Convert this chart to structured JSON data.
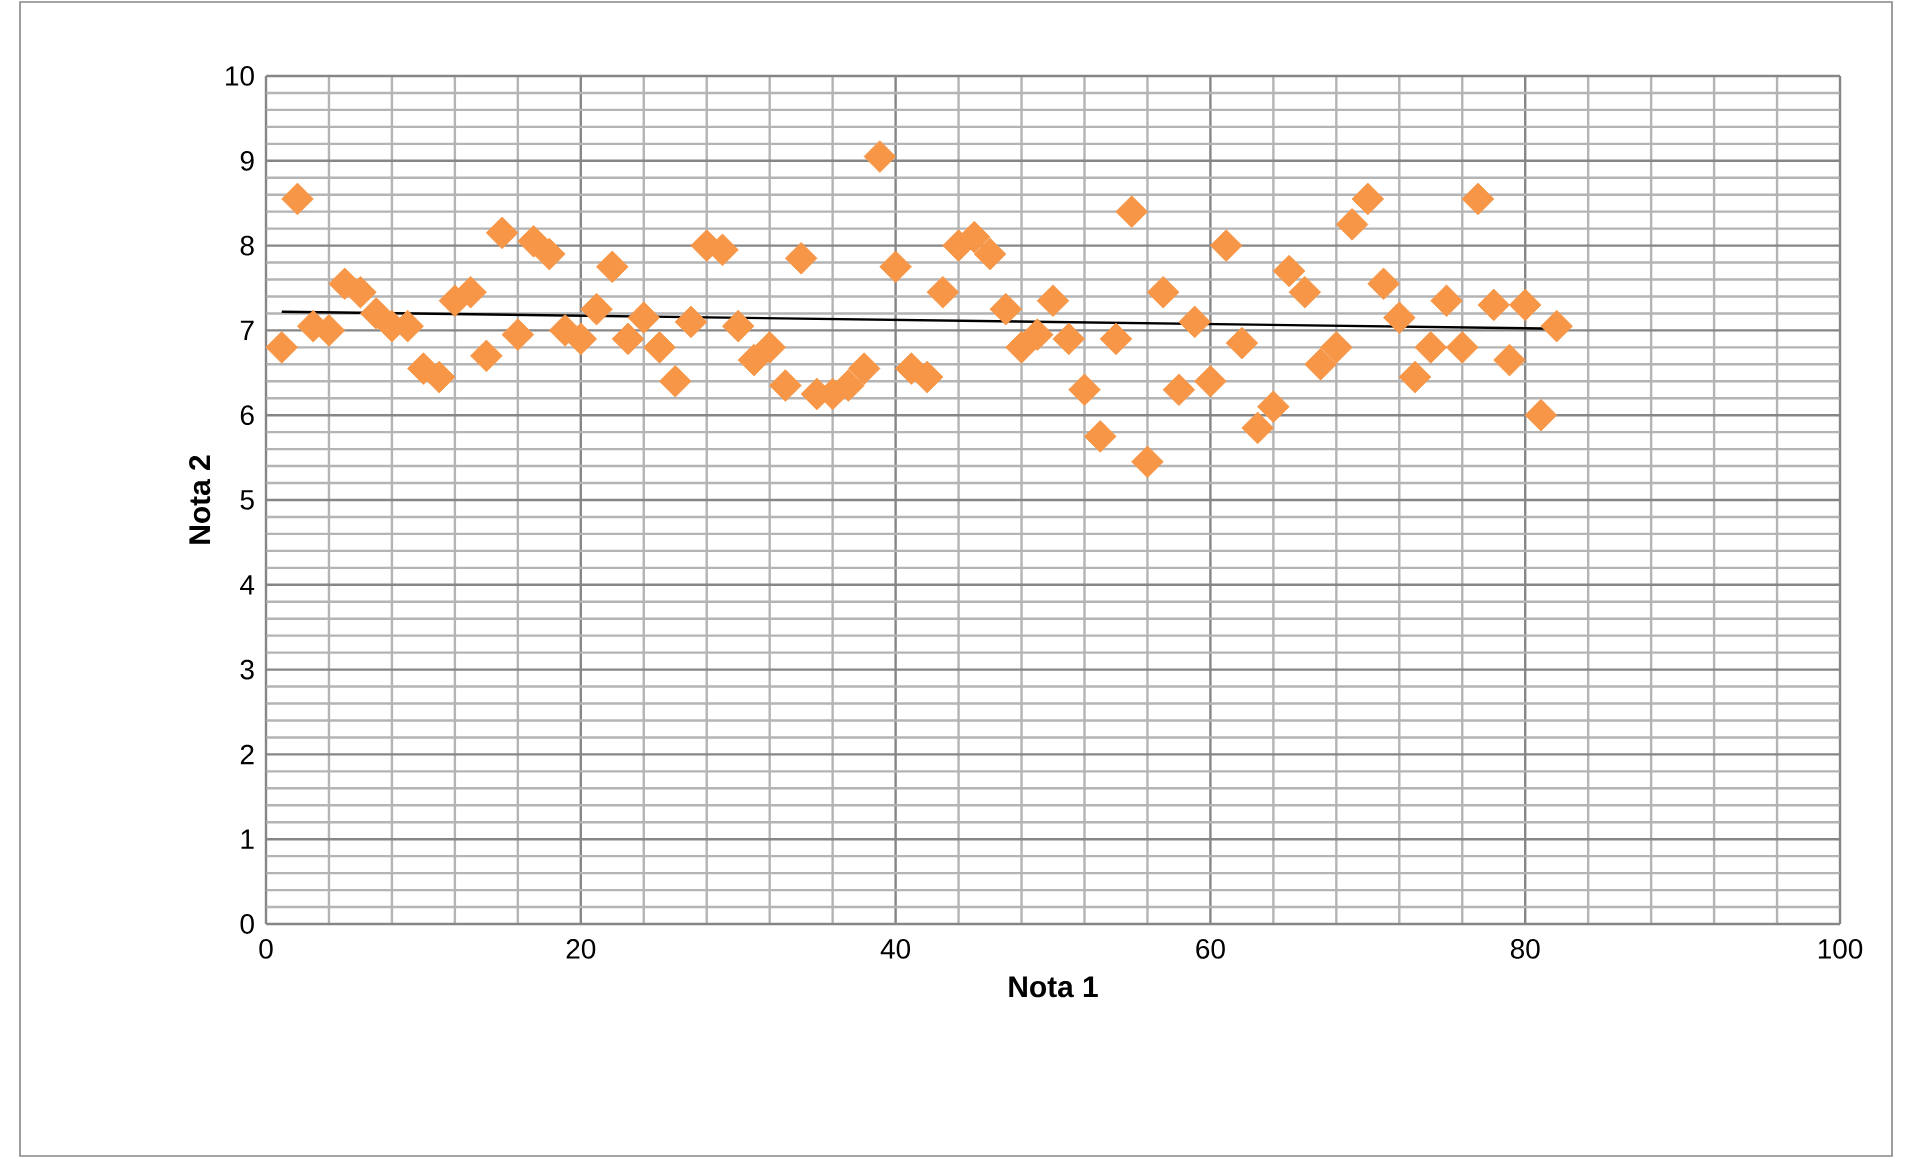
{
  "chart_data": {
    "type": "scatter",
    "xlabel": "Nota 1",
    "ylabel": "Nota 2",
    "xlim": [
      0,
      100
    ],
    "ylim": [
      0,
      10
    ],
    "xticks": [
      0,
      20,
      40,
      60,
      80,
      100
    ],
    "yticks": [
      0,
      1,
      2,
      3,
      4,
      5,
      6,
      7,
      8,
      9,
      10
    ],
    "grid": true,
    "marker": "diamond",
    "series": [
      {
        "color": "#f79646",
        "x": [
          1,
          2,
          3,
          4,
          5,
          6,
          7,
          8,
          9,
          10,
          11,
          12,
          13,
          14,
          15,
          16,
          17,
          18,
          19,
          20,
          21,
          22,
          23,
          24,
          25,
          26,
          27,
          28,
          29,
          30,
          31,
          32,
          33,
          34,
          35,
          36,
          37,
          38,
          39,
          40,
          41,
          42,
          43,
          44,
          45,
          46,
          47,
          48,
          49,
          50,
          51,
          52,
          53,
          54,
          55,
          56,
          57,
          58,
          59,
          60,
          61,
          62,
          63,
          64,
          65,
          66,
          67,
          68,
          69,
          70,
          71,
          72,
          73,
          74,
          75,
          76,
          77,
          78,
          79,
          80,
          81,
          82
        ],
        "values": [
          6.8,
          8.55,
          7.05,
          7.0,
          7.55,
          7.45,
          7.2,
          7.05,
          7.05,
          6.55,
          6.45,
          7.35,
          7.45,
          6.7,
          8.15,
          6.95,
          8.05,
          7.9,
          7.0,
          6.9,
          7.25,
          7.75,
          6.9,
          7.15,
          6.8,
          6.4,
          7.1,
          8.0,
          7.95,
          7.05,
          6.65,
          6.8,
          6.35,
          7.85,
          6.25,
          6.25,
          6.35,
          6.55,
          9.05,
          7.75,
          6.55,
          6.45,
          7.45,
          8.0,
          8.1,
          7.9,
          7.25,
          6.8,
          6.95,
          7.35,
          6.9,
          6.3,
          5.75,
          6.9,
          8.4,
          5.45,
          7.45,
          6.3,
          7.1,
          6.4,
          8.0,
          6.85,
          5.85,
          6.1,
          7.7,
          7.45,
          6.6,
          6.8,
          8.25,
          8.55,
          7.55,
          7.15,
          6.45,
          6.8,
          7.35,
          6.8,
          8.55,
          7.3,
          6.65,
          7.3,
          6.0,
          7.05
        ]
      },
      {
        "type": "line",
        "color": "#000000",
        "marker": "none",
        "line_style": "solid",
        "x": [
          1,
          82
        ],
        "values": [
          7.22,
          7.02
        ]
      }
    ]
  }
}
